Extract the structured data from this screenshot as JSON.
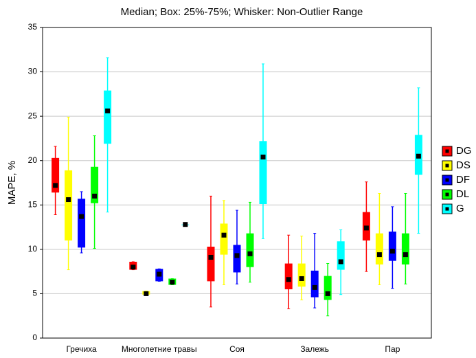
{
  "chart_data": {
    "type": "box",
    "title": "Median; Box: 25%-75%; Whisker: Non-Outlier Range",
    "y_label": "MAPE, %",
    "categories": [
      "Гречиха",
      "Многолетние травы",
      "Соя",
      "Залежь",
      "Пар"
    ],
    "ylim": [
      0,
      35
    ],
    "yticks": [
      0,
      5,
      10,
      15,
      20,
      25,
      30,
      35
    ],
    "grid": true,
    "legend": "right",
    "series": [
      {
        "name": "DG",
        "color": "#ff0000",
        "min": [
          13.9,
          7.7,
          3.5,
          3.3,
          7.5
        ],
        "q1": [
          16.4,
          7.7,
          6.4,
          5.5,
          11.0
        ],
        "median": [
          17.2,
          8.0,
          9.1,
          6.6,
          12.4
        ],
        "q3": [
          20.3,
          8.6,
          10.3,
          8.4,
          14.2
        ],
        "max": [
          21.6,
          8.6,
          16.0,
          11.6,
          17.6
        ]
      },
      {
        "name": "DS",
        "color": "#ffff00",
        "min": [
          7.7,
          4.9,
          6.0,
          4.3,
          6.0
        ],
        "q1": [
          11.0,
          4.9,
          9.4,
          5.8,
          8.3
        ],
        "median": [
          15.6,
          5.0,
          11.6,
          6.7,
          9.4
        ],
        "q3": [
          18.9,
          5.3,
          12.9,
          8.4,
          11.8
        ],
        "max": [
          24.9,
          5.3,
          15.5,
          11.5,
          16.3
        ]
      },
      {
        "name": "DF",
        "color": "#0000ff",
        "min": [
          9.6,
          6.4,
          6.1,
          3.4,
          5.6
        ],
        "q1": [
          10.2,
          6.4,
          7.4,
          4.6,
          8.7
        ],
        "median": [
          13.7,
          7.2,
          9.3,
          5.7,
          9.8
        ],
        "q3": [
          15.7,
          7.8,
          10.5,
          7.6,
          12.0
        ],
        "max": [
          16.5,
          7.8,
          14.4,
          11.8,
          14.8
        ]
      },
      {
        "name": "DL",
        "color": "#00ff00",
        "min": [
          10.1,
          6.0,
          6.3,
          2.5,
          6.1
        ],
        "q1": [
          15.2,
          6.0,
          8.0,
          4.3,
          8.3
        ],
        "median": [
          16.0,
          6.3,
          9.5,
          5.0,
          9.4
        ],
        "q3": [
          19.3,
          6.7,
          11.8,
          7.0,
          11.8
        ],
        "max": [
          22.8,
          6.7,
          15.3,
          8.4,
          16.3
        ]
      },
      {
        "name": "G",
        "color": "#00ffff",
        "min": [
          14.2,
          12.8,
          11.2,
          4.9,
          11.8
        ],
        "q1": [
          21.9,
          12.8,
          15.1,
          7.7,
          18.4
        ],
        "median": [
          25.6,
          12.8,
          20.4,
          8.6,
          20.5
        ],
        "q3": [
          27.9,
          12.8,
          22.2,
          10.9,
          22.9
        ],
        "max": [
          31.6,
          12.8,
          30.9,
          12.2,
          28.2
        ]
      }
    ]
  }
}
